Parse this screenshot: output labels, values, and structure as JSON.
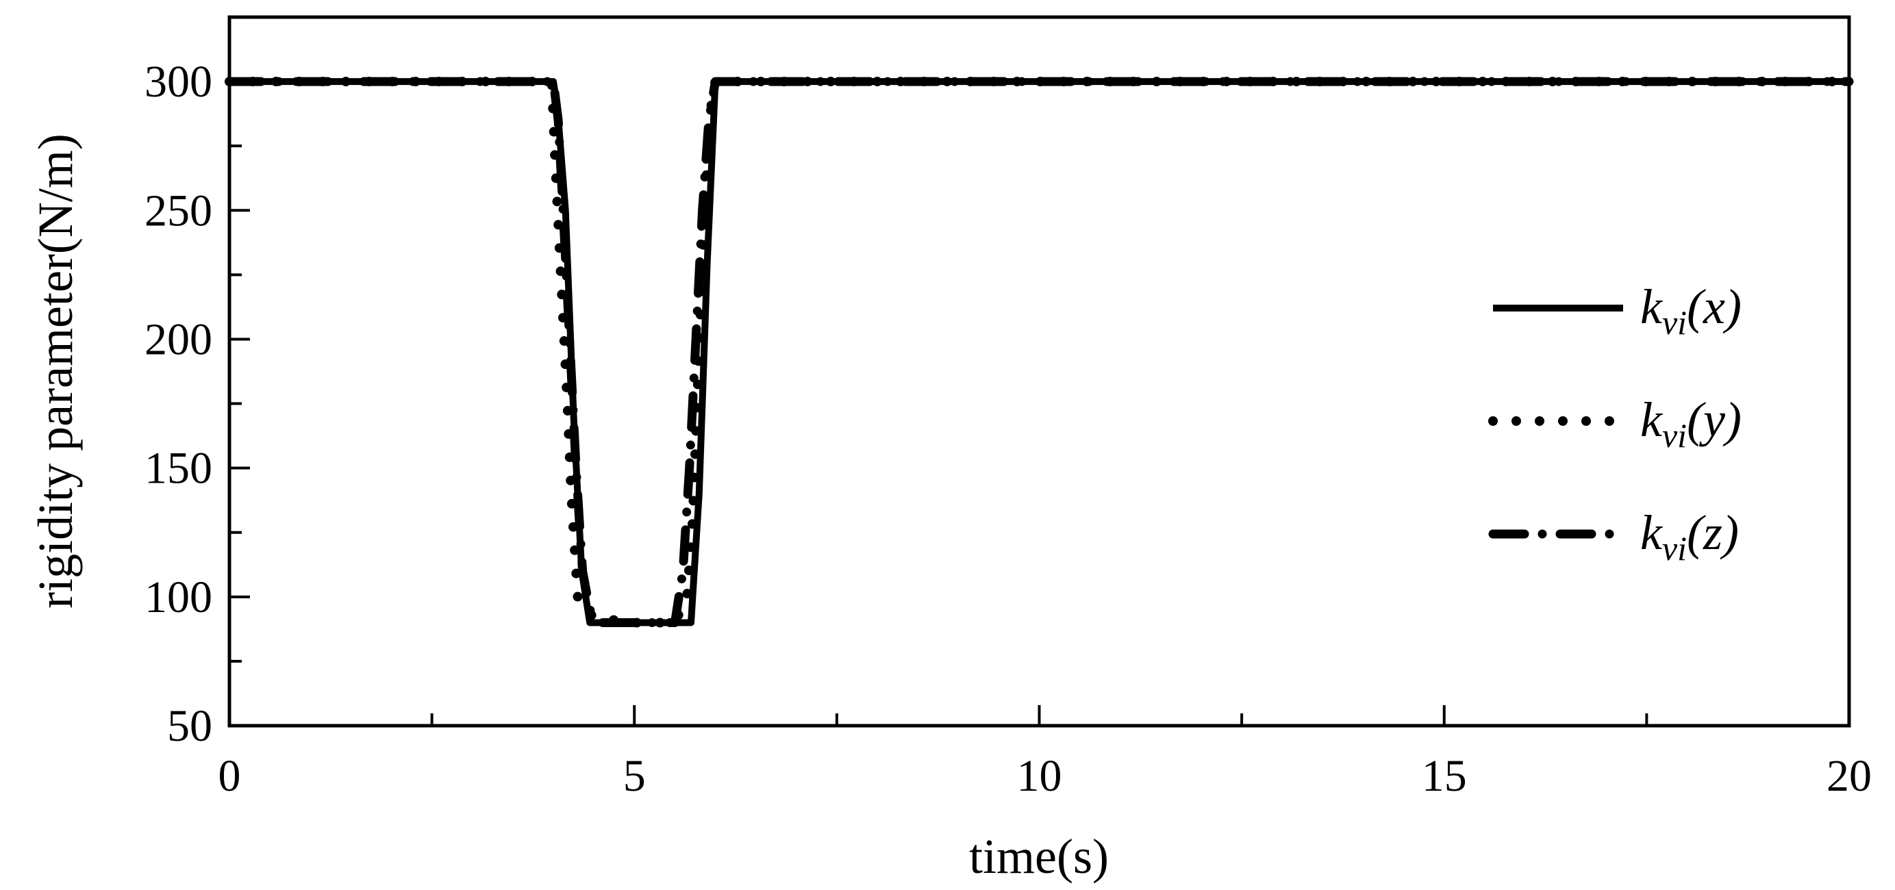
{
  "chart_data": {
    "type": "line",
    "title": "",
    "xlabel": "time(s)",
    "ylabel": "rigidity parameter(N/m)",
    "xlim": [
      0,
      20
    ],
    "ylim": [
      50,
      325
    ],
    "xticks": [
      0,
      5,
      10,
      15,
      20
    ],
    "xtick_labels": [
      "0",
      "5",
      "10",
      "15",
      "20"
    ],
    "yticks": [
      50,
      100,
      150,
      200,
      250,
      300
    ],
    "ytick_labels": [
      "50",
      "100",
      "150",
      "200",
      "250",
      "300"
    ],
    "grid": false,
    "legend_position": "right",
    "series": [
      {
        "name": "k_vi(x)",
        "legend": {
          "base": "k",
          "sub": "vi",
          "arg": "(x)"
        },
        "style": "solid",
        "color": "#000000",
        "x": [
          0,
          4.0,
          4.05,
          4.15,
          4.25,
          4.35,
          4.45,
          5.0,
          5.5,
          5.7,
          5.8,
          5.9,
          6.0,
          20
        ],
        "y": [
          300,
          300,
          290,
          250,
          170,
          110,
          90,
          90,
          90,
          90,
          140,
          230,
          300,
          300
        ]
      },
      {
        "name": "k_vi(y)",
        "legend": {
          "base": "k",
          "sub": "vi",
          "arg": "(y)"
        },
        "style": "dotted",
        "color": "#000000",
        "x": [
          0,
          3.98,
          4.02,
          4.06,
          4.1,
          4.14,
          4.18,
          4.22,
          4.26,
          4.3,
          4.4,
          4.5,
          5.0,
          5.5,
          5.65,
          5.72,
          5.78,
          5.84,
          5.9,
          5.96,
          6.0,
          20
        ],
        "y": [
          300,
          300,
          270,
          245,
          220,
          195,
          170,
          140,
          120,
          100,
          95,
          92,
          90,
          90,
          100,
          130,
          180,
          230,
          270,
          295,
          300,
          300
        ]
      },
      {
        "name": "k_vi(z)",
        "legend": {
          "base": "k",
          "sub": "vi",
          "arg": "(z)"
        },
        "style": "dashdot",
        "color": "#000000",
        "x": [
          0,
          4.0,
          4.06,
          4.12,
          4.2,
          4.28,
          4.36,
          4.45,
          4.6,
          5.0,
          5.5,
          5.6,
          5.68,
          5.76,
          5.84,
          5.92,
          6.0,
          20
        ],
        "y": [
          300,
          300,
          285,
          250,
          200,
          150,
          110,
          95,
          90,
          90,
          90,
          110,
          150,
          200,
          250,
          285,
          300,
          300
        ]
      }
    ]
  }
}
